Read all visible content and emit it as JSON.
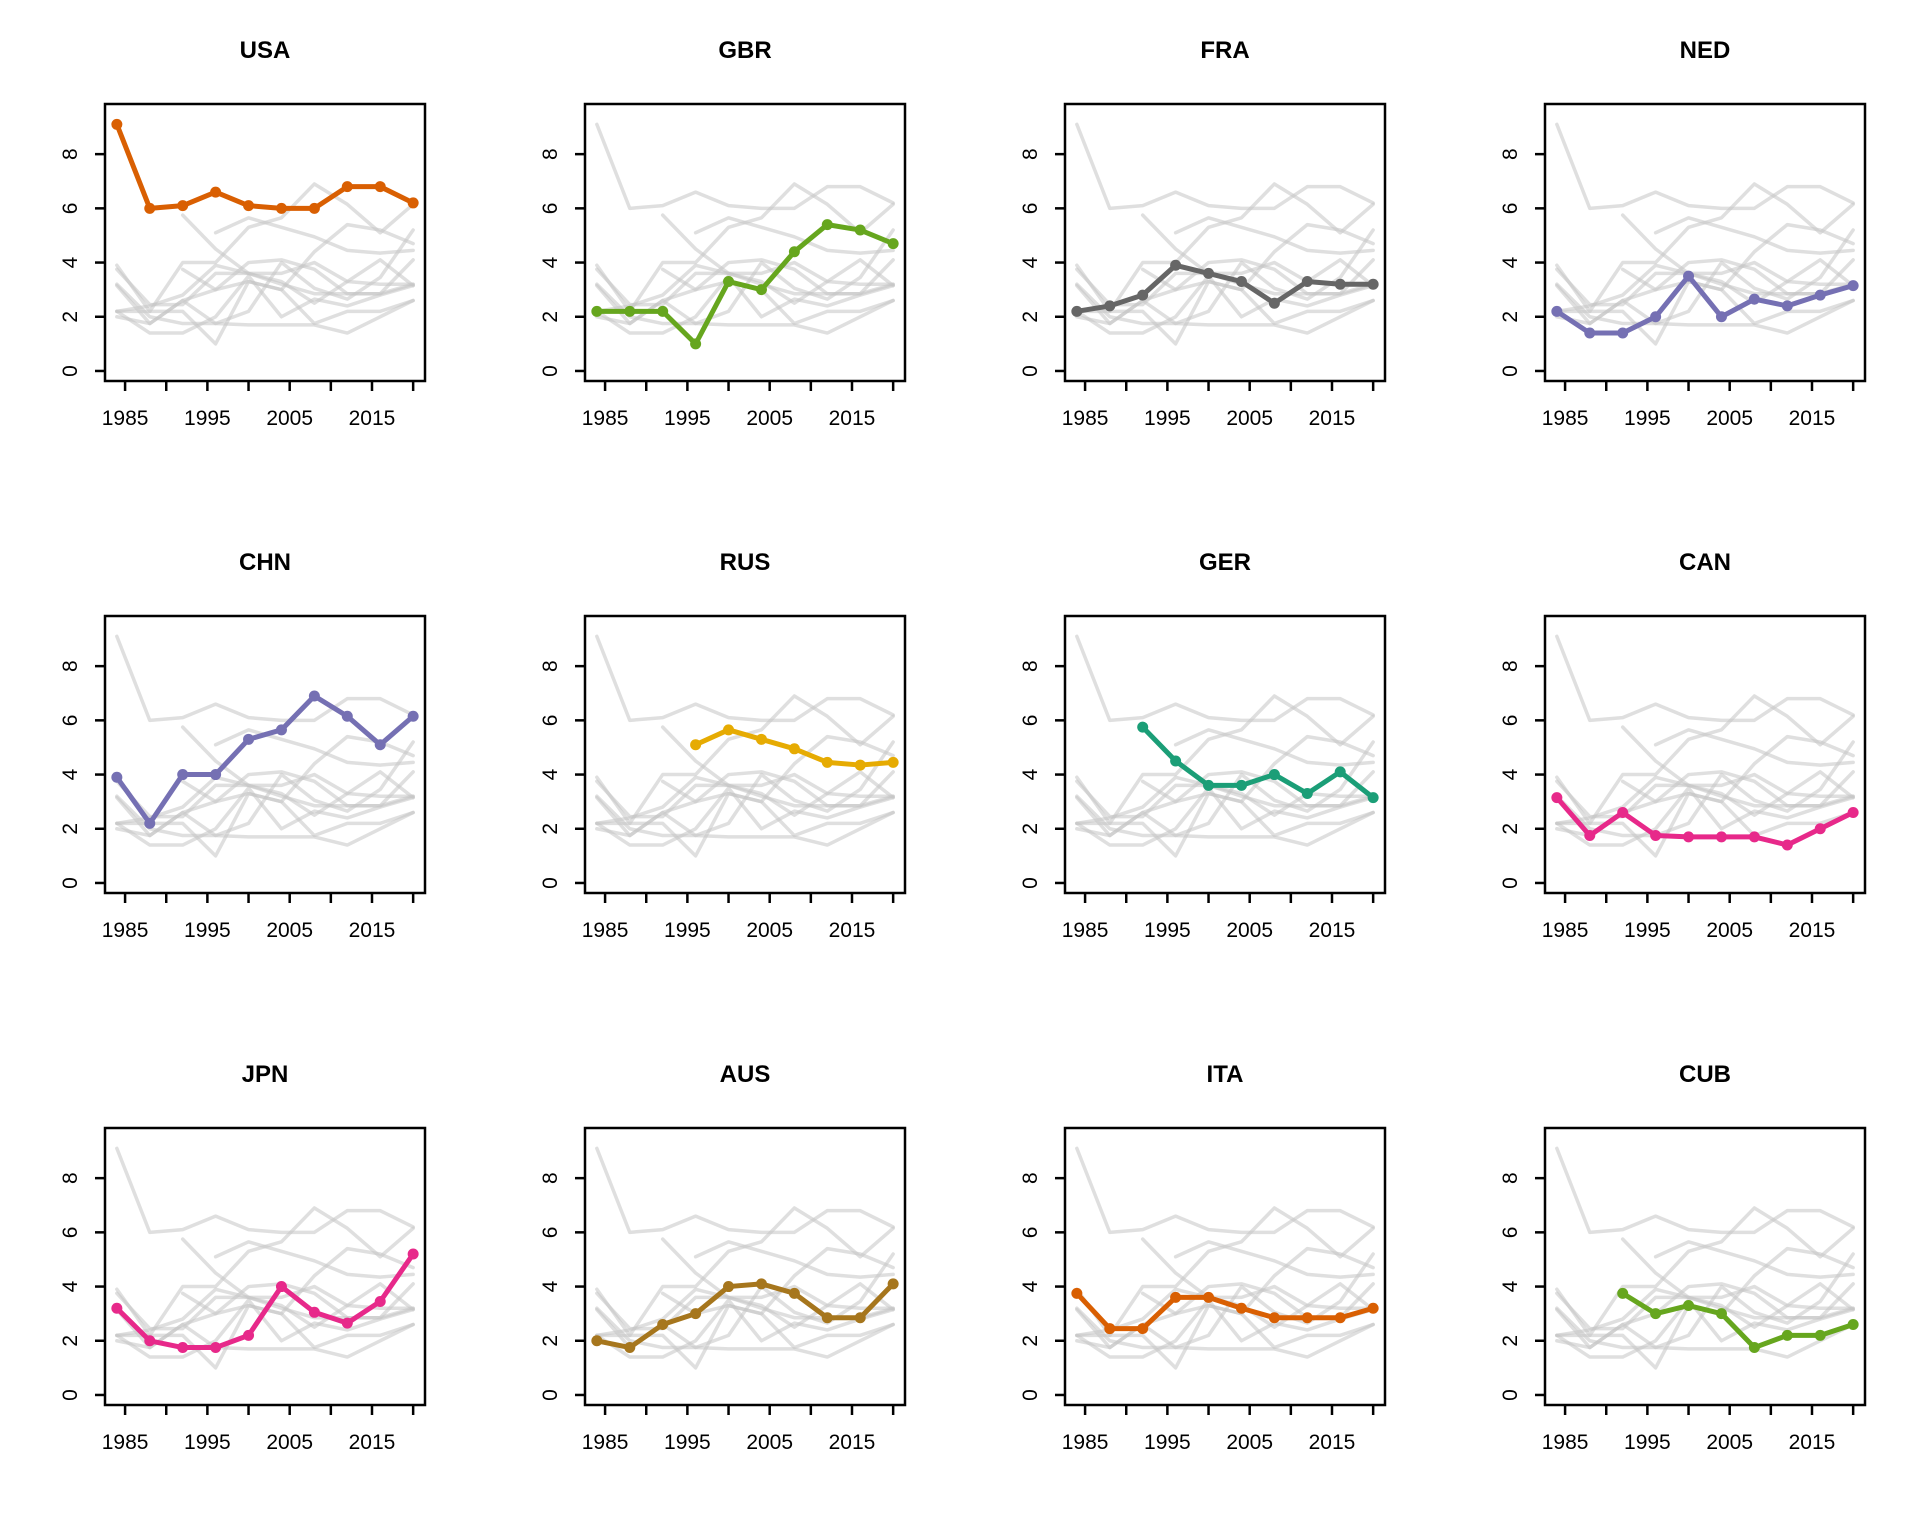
{
  "chart_data": {
    "type": "line",
    "description": "Small-multiples line charts, one per country, each highlighting that country's series against all other countries' series in light gray",
    "layout": {
      "rows": 3,
      "cols": 4,
      "legend": "none",
      "grid_lines": false
    },
    "x_axis": {
      "data_years_full": [
        1984,
        1988,
        1992,
        1996,
        2000,
        2004,
        2008,
        2012,
        2016,
        2020
      ],
      "ticks": [
        1985,
        1990,
        1995,
        2000,
        2005,
        2010,
        2015,
        2020
      ],
      "labeled_ticks": [
        1985,
        1995,
        2005,
        2015
      ],
      "tick_labels": [
        "1985",
        "1995",
        "2005",
        "2015"
      ],
      "range": [
        1982.56,
        2021.44
      ]
    },
    "y_axis": {
      "ticks": [
        0,
        2,
        4,
        6,
        8
      ],
      "tick_labels": [
        "0",
        "2",
        "4",
        "6",
        "8"
      ],
      "range": [
        -0.37,
        9.85
      ]
    },
    "panels": [
      {
        "title": "USA",
        "color": "#D95F02",
        "values": [
          9.1,
          6.0,
          6.1,
          6.6,
          6.1,
          6.0,
          6.0,
          6.8,
          6.8,
          6.2
        ]
      },
      {
        "title": "GBR",
        "color": "#66A61E",
        "values": [
          2.2,
          2.2,
          2.2,
          1.0,
          3.3,
          3.0,
          4.4,
          5.4,
          5.2,
          4.7
        ]
      },
      {
        "title": "FRA",
        "color": "#666666",
        "values": [
          2.2,
          2.4,
          2.8,
          3.9,
          3.6,
          3.3,
          2.5,
          3.3,
          3.2,
          3.2
        ]
      },
      {
        "title": "NED",
        "color": "#7570B3",
        "values": [
          2.2,
          1.4,
          1.4,
          2.0,
          3.5,
          2.0,
          2.65,
          2.4,
          2.8,
          3.15
        ]
      },
      {
        "title": "CHN",
        "color": "#7570B3",
        "values": [
          3.9,
          2.2,
          4.0,
          4.0,
          5.3,
          5.65,
          6.9,
          6.15,
          5.1,
          6.15
        ]
      },
      {
        "title": "RUS",
        "color": "#E6AB02",
        "years": [
          1996,
          2000,
          2004,
          2008,
          2012,
          2016,
          2020
        ],
        "values": [
          5.1,
          5.65,
          5.3,
          4.95,
          4.45,
          4.35,
          4.45
        ]
      },
      {
        "title": "GER",
        "color": "#1B9E77",
        "years": [
          1992,
          1996,
          2000,
          2004,
          2008,
          2012,
          2016,
          2020
        ],
        "values": [
          5.75,
          4.5,
          3.6,
          3.6,
          4.0,
          3.3,
          4.1,
          3.15
        ]
      },
      {
        "title": "CAN",
        "color": "#E7298A",
        "values": [
          3.15,
          1.75,
          2.6,
          1.75,
          1.7,
          1.7,
          1.7,
          1.4,
          2.0,
          2.6
        ]
      },
      {
        "title": "JPN",
        "color": "#E7298A",
        "values": [
          3.2,
          2.0,
          1.75,
          1.75,
          2.2,
          4.0,
          3.05,
          2.65,
          3.45,
          5.2
        ]
      },
      {
        "title": "AUS",
        "color": "#A6761D",
        "values": [
          2.0,
          1.75,
          2.6,
          3.0,
          4.0,
          4.1,
          3.75,
          2.85,
          2.85,
          4.1
        ]
      },
      {
        "title": "ITA",
        "color": "#D95F02",
        "values": [
          3.75,
          2.45,
          2.45,
          3.6,
          3.6,
          3.2,
          2.85,
          2.85,
          2.85,
          3.2
        ]
      },
      {
        "title": "CUB",
        "color": "#66A61E",
        "years": [
          1992,
          1996,
          2000,
          2004,
          2008,
          2012,
          2016,
          2020
        ],
        "values": [
          3.75,
          3.0,
          3.3,
          3.0,
          1.75,
          2.2,
          2.2,
          2.6
        ]
      }
    ],
    "style_colors": {
      "background_series_stroke": "#c4c4c4",
      "background_series_opacity": 0.55,
      "axis_color": "#000000",
      "panel_background": "#ffffff"
    }
  }
}
